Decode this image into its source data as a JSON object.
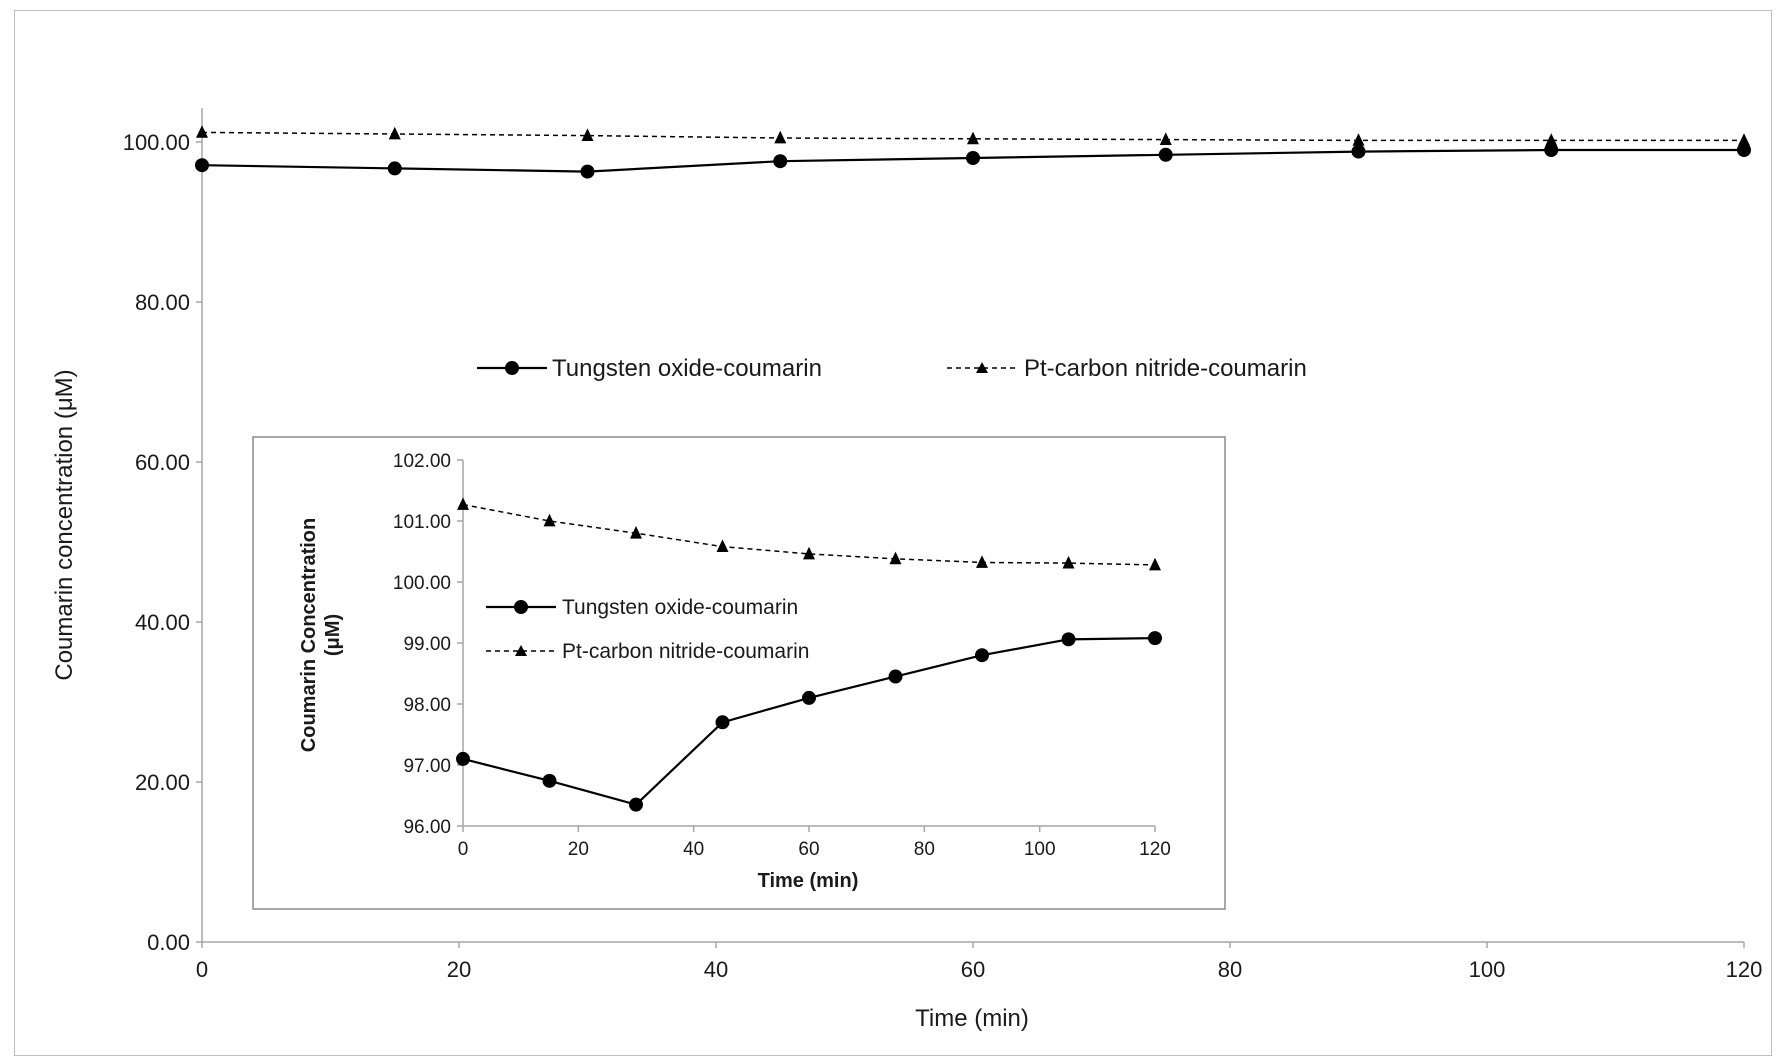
{
  "chart_data": [
    {
      "type": "line",
      "title": "",
      "xlabel": "Time (min)",
      "ylabel": "Coumarin concentration (μM)",
      "xlim": [
        0,
        120
      ],
      "ylim": [
        0,
        100
      ],
      "x_ticks": [
        "0",
        "20",
        "40",
        "60",
        "80",
        "100",
        "120"
      ],
      "y_ticks": [
        "0.00",
        "20.00",
        "40.00",
        "60.00",
        "80.00",
        "100.00"
      ],
      "grid": false,
      "legend_position": "middle-center",
      "x": [
        0,
        15,
        30,
        45,
        60,
        75,
        90,
        105,
        120
      ],
      "series": [
        {
          "name": "Tungsten oxide-coumarin",
          "marker": "circle",
          "line": "solid",
          "values": [
            97.1,
            96.7,
            96.3,
            97.6,
            98.0,
            98.4,
            98.8,
            99.0,
            99.0
          ]
        },
        {
          "name": "Pt-carbon nitride-coumarin",
          "marker": "triangle",
          "line": "dashed",
          "values": [
            101.2,
            101.0,
            100.8,
            100.5,
            100.4,
            100.3,
            100.2,
            100.2,
            100.2
          ]
        }
      ]
    },
    {
      "type": "line",
      "title": "",
      "xlabel": "Time (min)",
      "ylabel_line1": "Coumarin Concentration",
      "ylabel_line2": "(μM)",
      "xlim": [
        0,
        120
      ],
      "ylim": [
        96,
        102
      ],
      "x_ticks": [
        "0",
        "20",
        "40",
        "60",
        "80",
        "100",
        "120"
      ],
      "y_ticks": [
        "96.00",
        "97.00",
        "98.00",
        "99.00",
        "100.00",
        "101.00",
        "102.00"
      ],
      "grid": false,
      "legend_position": "middle-left",
      "x": [
        0,
        15,
        30,
        45,
        60,
        75,
        90,
        105,
        120
      ],
      "series": [
        {
          "name": "Tungsten oxide-coumarin",
          "marker": "circle",
          "line": "solid",
          "values": [
            97.1,
            96.74,
            96.35,
            97.7,
            98.1,
            98.45,
            98.8,
            99.06,
            99.08
          ]
        },
        {
          "name": "Pt-carbon nitride-coumarin",
          "marker": "triangle",
          "line": "dashed",
          "values": [
            101.27,
            101.0,
            100.8,
            100.58,
            100.46,
            100.38,
            100.32,
            100.31,
            100.28
          ]
        }
      ]
    }
  ]
}
